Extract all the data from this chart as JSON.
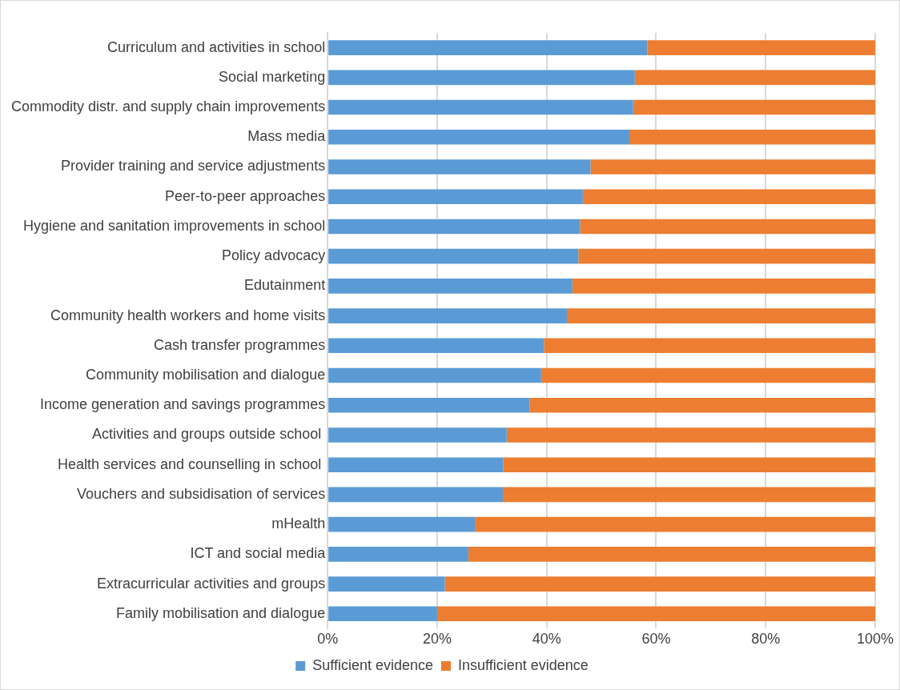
{
  "chart_data": {
    "type": "bar",
    "orientation": "horizontal",
    "stacked": true,
    "categories": [
      "Curriculum and activities in school",
      "Social marketing",
      "Commodity distr. and supply chain improvements",
      "Mass media",
      "Provider training and service adjustments",
      "Peer-to-peer approaches",
      "Hygiene and sanitation improvements in school",
      "Policy advocacy",
      "Edutainment",
      "Community health workers and home visits",
      "Cash transfer programmes",
      "Community mobilisation and dialogue",
      "Income generation and savings programmes",
      "Activities and groups outside school ",
      "Health services and counselling in school ",
      "Vouchers and subsidisation of services",
      "mHealth",
      "ICT and social media",
      "Extracurricular activities and groups",
      "Family mobilisation and dialogue"
    ],
    "series": [
      {
        "name": "Sufficient evidence",
        "color": "#5b9bd5",
        "values": [
          58.4,
          56.1,
          55.8,
          55.1,
          48,
          46.6,
          46.1,
          45.8,
          44.7,
          43.7,
          39.5,
          39,
          36.9,
          32.7,
          32.1,
          32,
          26.9,
          25.7,
          21.4,
          20
        ]
      },
      {
        "name": "Insufficient evidence",
        "color": "#ed7d31",
        "values": [
          41.6,
          43.9,
          44.2,
          44.9,
          52,
          53.4,
          53.9,
          54.2,
          55.3,
          56.3,
          60.5,
          61,
          63.1,
          67.3,
          67.9,
          68,
          73.1,
          74.3,
          78.6,
          80
        ]
      }
    ],
    "xlim": [
      0,
      100
    ],
    "xticks": [
      {
        "value": 0,
        "label": "0%"
      },
      {
        "value": 20,
        "label": "20%"
      },
      {
        "value": 40,
        "label": "40%"
      },
      {
        "value": 60,
        "label": "60%"
      },
      {
        "value": 80,
        "label": "80%"
      },
      {
        "value": 100,
        "label": "100%"
      }
    ],
    "grid": "x",
    "legend": "bottom"
  }
}
